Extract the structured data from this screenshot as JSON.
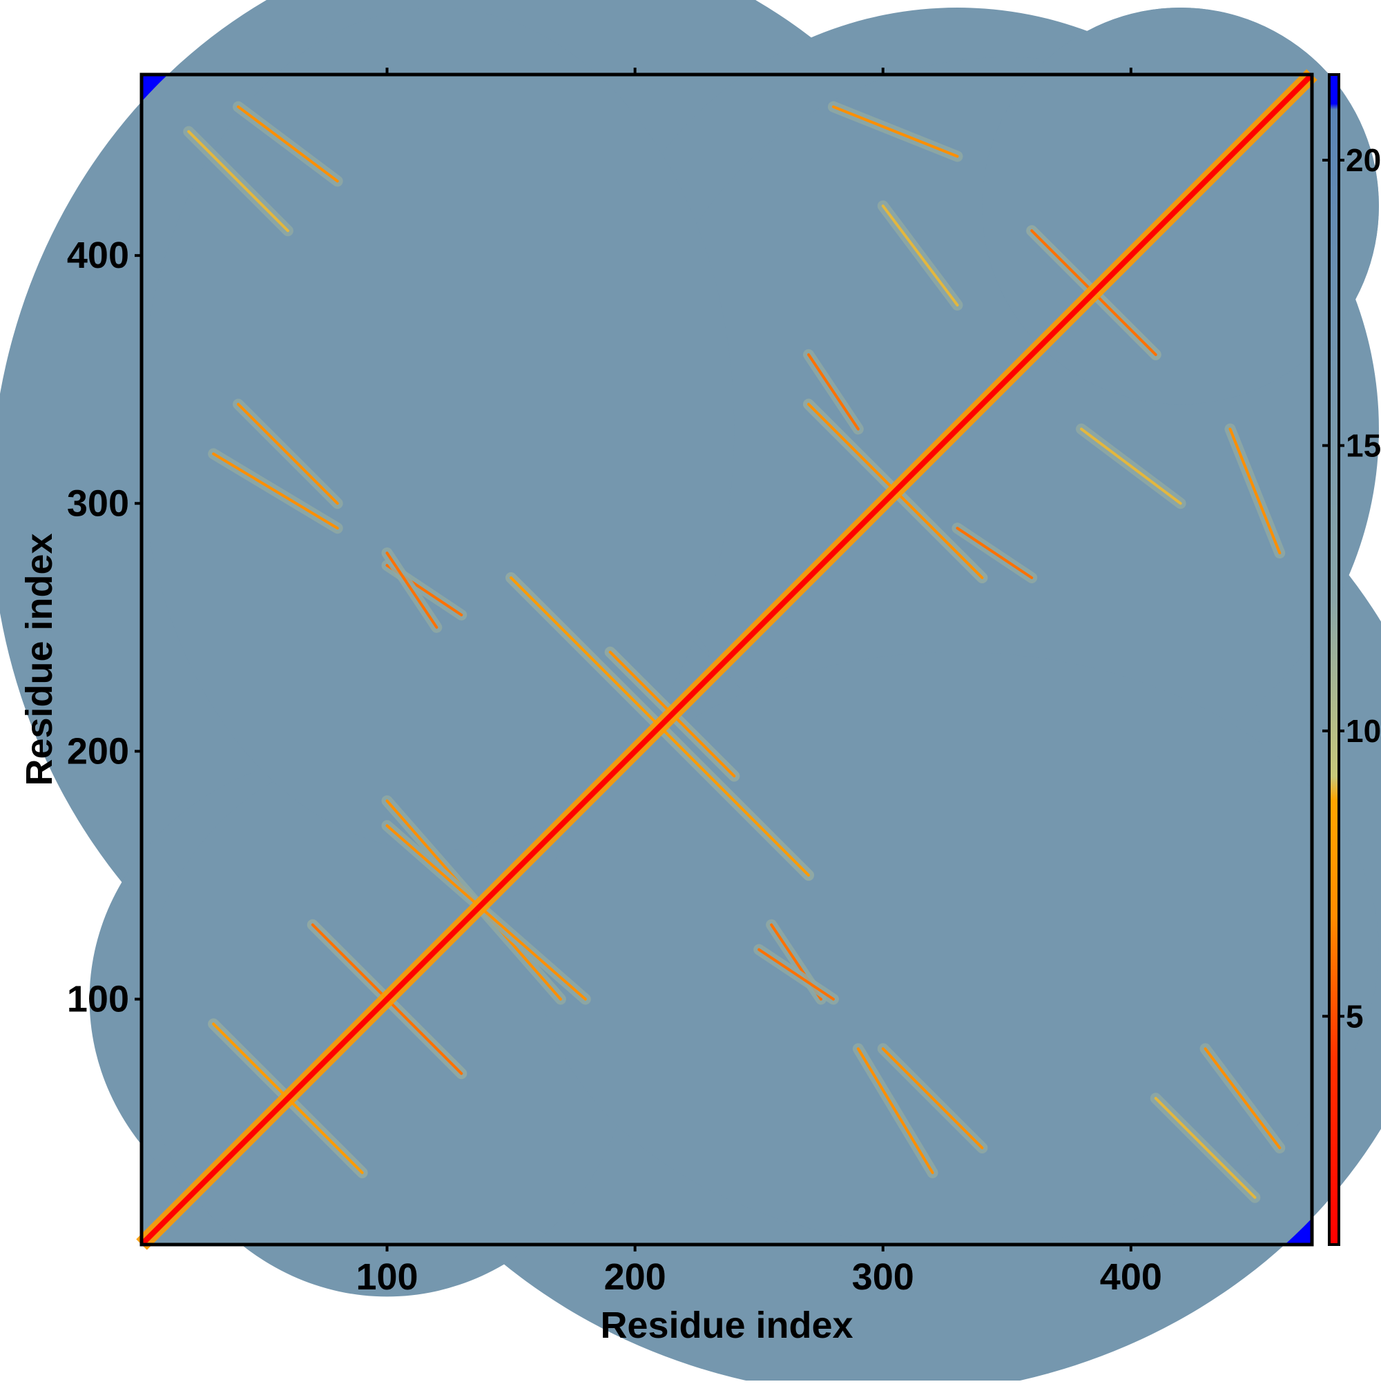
{
  "chart_data": {
    "type": "heatmap",
    "title": "",
    "xlabel": "Residue index",
    "ylabel": "Residue index",
    "xlim": [
      1,
      473
    ],
    "ylim": [
      1,
      473
    ],
    "x_ticks": [
      100,
      200,
      300,
      400
    ],
    "y_ticks": [
      100,
      200,
      300,
      400
    ],
    "colorbar": {
      "ticks": [
        5,
        10,
        15,
        20
      ],
      "range": [
        1,
        21.5
      ],
      "colors": [
        {
          "stop": 0.0,
          "color": "#ff0000"
        },
        {
          "stop": 0.16,
          "color": "#ff3300"
        },
        {
          "stop": 0.28,
          "color": "#ff8c00"
        },
        {
          "stop": 0.38,
          "color": "#ffa500"
        },
        {
          "stop": 0.4,
          "color": "#c8c87a"
        },
        {
          "stop": 0.55,
          "color": "#8aa6a8"
        },
        {
          "stop": 0.97,
          "color": "#5a84b6"
        },
        {
          "stop": 0.975,
          "color": "#0000ff"
        },
        {
          "stop": 1.0,
          "color": "#0000ff"
        }
      ]
    },
    "background_value": 21,
    "diagonal_value": 1,
    "contact_features": [
      {
        "kind": "antidiagonal",
        "from": [
          70,
          130
        ],
        "to": [
          130,
          70
        ],
        "value": 6
      },
      {
        "kind": "antidiagonal",
        "from": [
          100,
          180
        ],
        "to": [
          170,
          100
        ],
        "value": 7
      },
      {
        "kind": "antidiagonal",
        "from": [
          190,
          240
        ],
        "to": [
          240,
          190
        ],
        "value": 7
      },
      {
        "kind": "antidiagonal",
        "from": [
          150,
          270
        ],
        "to": [
          270,
          150
        ],
        "value": 8
      },
      {
        "kind": "antidiagonal",
        "from": [
          270,
          340
        ],
        "to": [
          340,
          270
        ],
        "value": 7
      },
      {
        "kind": "antidiagonal",
        "from": [
          360,
          410
        ],
        "to": [
          410,
          360
        ],
        "value": 6
      },
      {
        "kind": "antidiagonal",
        "from": [
          30,
          90
        ],
        "to": [
          90,
          30
        ],
        "value": 8
      },
      {
        "kind": "parallel",
        "from": [
          20,
          450
        ],
        "to": [
          60,
          410
        ],
        "value": 9
      },
      {
        "kind": "parallel",
        "from": [
          30,
          320
        ],
        "to": [
          80,
          290
        ],
        "value": 7
      },
      {
        "kind": "parallel",
        "from": [
          100,
          275
        ],
        "to": [
          130,
          255
        ],
        "value": 6
      },
      {
        "kind": "parallel",
        "from": [
          280,
          460
        ],
        "to": [
          330,
          440
        ],
        "value": 7
      },
      {
        "kind": "parallel",
        "from": [
          330,
          290
        ],
        "to": [
          360,
          270
        ],
        "value": 6
      },
      {
        "kind": "parallel",
        "from": [
          300,
          80
        ],
        "to": [
          340,
          40
        ],
        "value": 7
      },
      {
        "kind": "parallel",
        "from": [
          430,
          80
        ],
        "to": [
          460,
          40
        ],
        "value": 7
      },
      {
        "kind": "parallel",
        "from": [
          250,
          120
        ],
        "to": [
          280,
          100
        ],
        "value": 6
      },
      {
        "kind": "parallel",
        "from": [
          380,
          330
        ],
        "to": [
          420,
          300
        ],
        "value": 9
      }
    ]
  }
}
